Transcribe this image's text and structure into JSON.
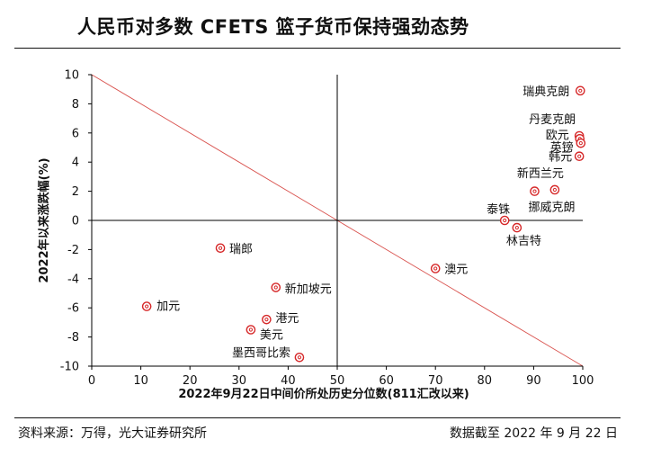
{
  "title": "人民币对多数 CFETS 篮子货币保持强劲态势",
  "footer": {
    "source": "资料来源：万得，光大证券研究所",
    "as_of": "数据截至 2022 年 9 月 22 日"
  },
  "chart_data": {
    "type": "scatter",
    "xlabel": "2022年9月22日中间价所处历史分位数(811汇改以来)",
    "ylabel": "2022年以来涨跌幅(%)",
    "xlim": [
      0,
      100
    ],
    "ylim": [
      -10,
      10
    ],
    "xticks": [
      0,
      10,
      20,
      30,
      40,
      50,
      60,
      70,
      80,
      90,
      100
    ],
    "yticks": [
      -10,
      -8,
      -6,
      -4,
      -2,
      0,
      2,
      4,
      6,
      8,
      10
    ],
    "reference_lines": {
      "vertical_x": 50,
      "horizontal_y": 0,
      "diagonal": {
        "from": [
          0,
          10
        ],
        "to": [
          100,
          -10
        ],
        "color": "#d9534f"
      }
    },
    "marker_color": "#d62728",
    "points": [
      {
        "label": "瑞典克朗",
        "x": 99.5,
        "y": 8.9
      },
      {
        "label": "丹麦克朗",
        "x": 99.3,
        "y": 5.8
      },
      {
        "label": "欧元",
        "x": 99.4,
        "y": 5.6
      },
      {
        "label": "英镑",
        "x": 99.6,
        "y": 5.3
      },
      {
        "label": "韩元",
        "x": 99.3,
        "y": 4.4
      },
      {
        "label": "新西兰元",
        "x": 94.3,
        "y": 2.1
      },
      {
        "label": "挪威克朗",
        "x": 90.2,
        "y": 2.0
      },
      {
        "label": "泰铢",
        "x": 84.1,
        "y": 0.0
      },
      {
        "label": "林吉特",
        "x": 86.6,
        "y": -0.5
      },
      {
        "label": "澳元",
        "x": 70.0,
        "y": -3.3
      },
      {
        "label": "瑞郎",
        "x": 26.2,
        "y": -1.9
      },
      {
        "label": "新加坡元",
        "x": 37.5,
        "y": -4.6
      },
      {
        "label": "加元",
        "x": 11.2,
        "y": -5.9
      },
      {
        "label": "港元",
        "x": 35.6,
        "y": -6.8
      },
      {
        "label": "美元",
        "x": 32.4,
        "y": -7.5
      },
      {
        "label": "墨西哥比索",
        "x": 42.3,
        "y": -9.4
      }
    ]
  }
}
